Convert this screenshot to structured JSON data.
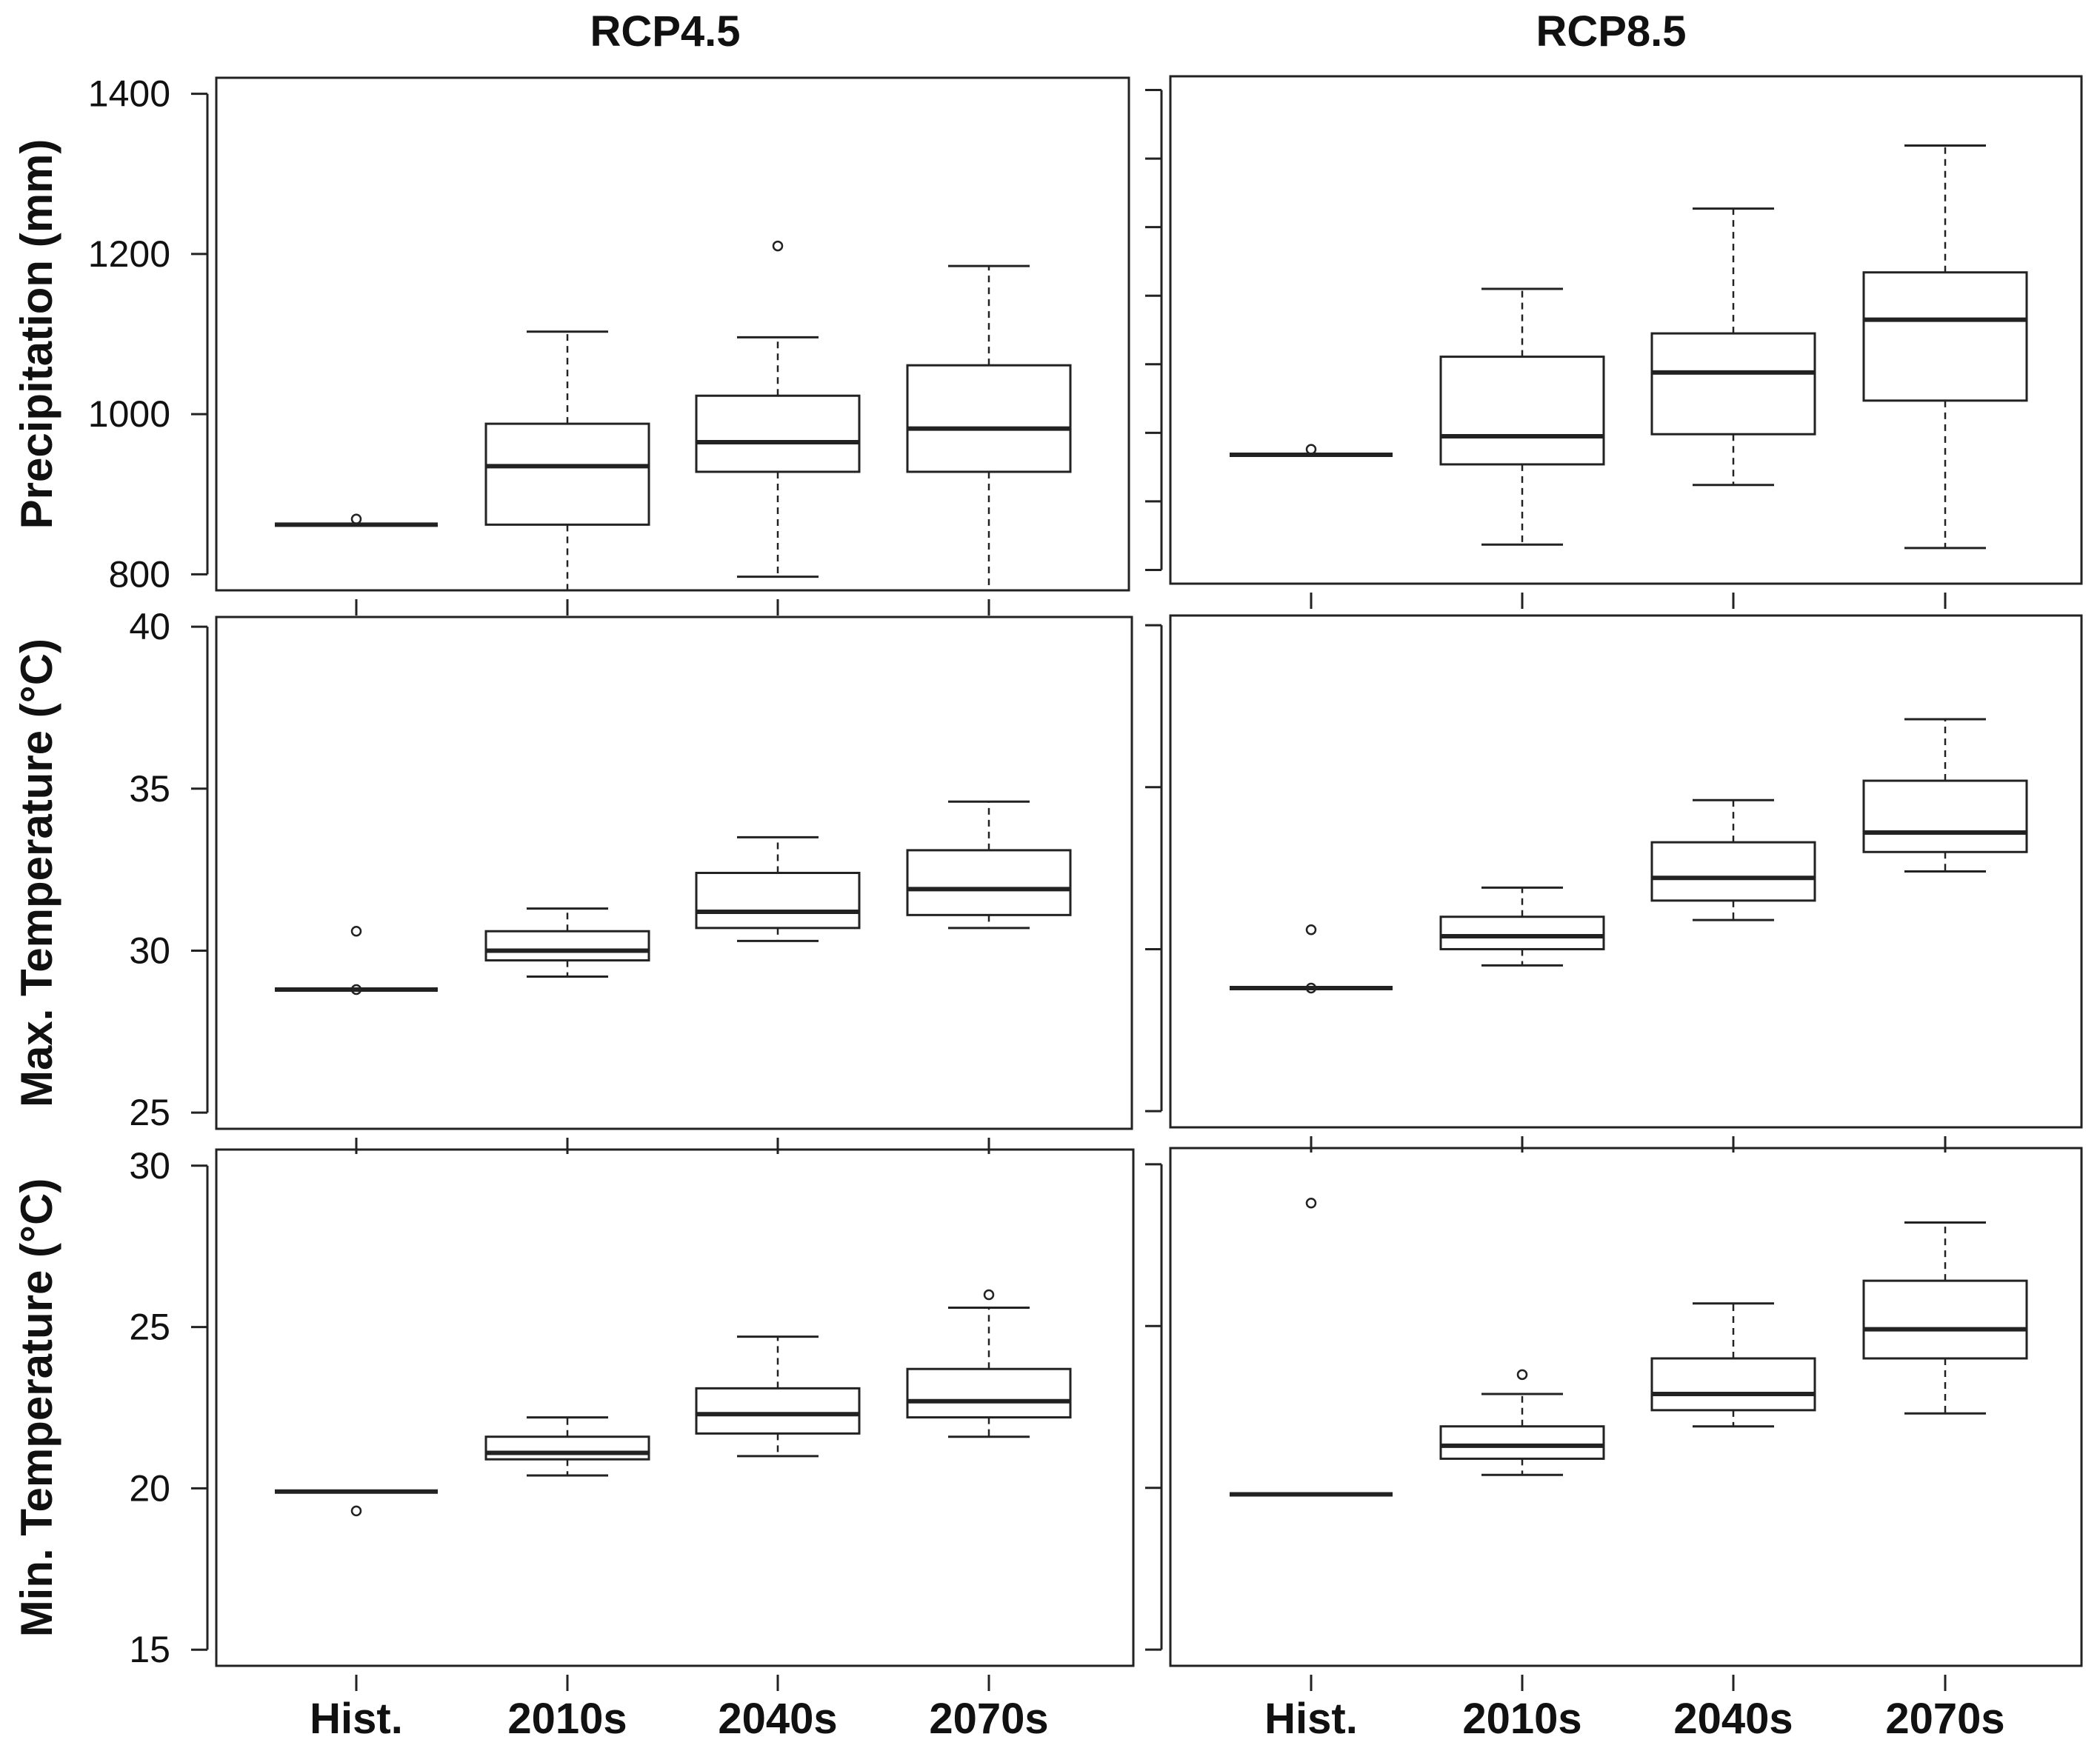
{
  "chart_data": {
    "type": "box",
    "layout": "3 rows x 2 columns",
    "columns": [
      "RCP4.5",
      "RCP8.5"
    ],
    "rows": [
      "Precipitation (mm)",
      "Max. Temperature (°C)",
      "Min. Temperature (°C)"
    ],
    "categories": [
      "Hist.",
      "2010s",
      "2040s",
      "2070s"
    ],
    "panels": [
      {
        "column": "RCP4.5",
        "ylabel": "Precipitation (mm)",
        "ylim": [
          780,
          1420
        ],
        "yticks": [
          800,
          1000,
          1200,
          1400
        ],
        "yticks_labeled": true,
        "boxes": [
          {
            "category": "Hist.",
            "min": 862,
            "q1": 862,
            "median": 862,
            "q3": 862,
            "max": 862,
            "outliers": [
              869
            ]
          },
          {
            "category": "2010s",
            "min": 780,
            "q1": 862,
            "median": 935,
            "q3": 988,
            "max": 1103,
            "outliers": []
          },
          {
            "category": "2040s",
            "min": 797,
            "q1": 928,
            "median": 965,
            "q3": 1023,
            "max": 1096,
            "outliers": [
              1210
            ]
          },
          {
            "category": "2070s",
            "min": 780,
            "q1": 928,
            "median": 982,
            "q3": 1061,
            "max": 1185,
            "outliers": []
          }
        ]
      },
      {
        "column": "RCP8.5",
        "ylabel": "",
        "ylim": [
          680,
          1420
        ],
        "yticks": [
          700,
          800,
          900,
          1000,
          1100,
          1200,
          1300,
          1400
        ],
        "yticks_labeled": false,
        "boxes": [
          {
            "category": "Hist.",
            "min": 868,
            "q1": 868,
            "median": 868,
            "q3": 868,
            "max": 868,
            "outliers": [
              876
            ]
          },
          {
            "category": "2010s",
            "min": 737,
            "q1": 854,
            "median": 895,
            "q3": 1011,
            "max": 1110,
            "outliers": []
          },
          {
            "category": "2040s",
            "min": 824,
            "q1": 898,
            "median": 988,
            "q3": 1045,
            "max": 1227,
            "outliers": []
          },
          {
            "category": "2070s",
            "min": 732,
            "q1": 947,
            "median": 1065,
            "q3": 1134,
            "max": 1319,
            "outliers": []
          }
        ]
      },
      {
        "column": "RCP4.5",
        "ylabel": "Max. Temperature (°C)",
        "ylim": [
          24.5,
          40.3
        ],
        "yticks": [
          25,
          30,
          35,
          40
        ],
        "yticks_labeled": true,
        "boxes": [
          {
            "category": "Hist.",
            "min": 28.8,
            "q1": 28.8,
            "median": 28.8,
            "q3": 28.8,
            "max": 28.8,
            "outliers": [
              30.6,
              28.8
            ]
          },
          {
            "category": "2010s",
            "min": 29.2,
            "q1": 29.7,
            "median": 30.0,
            "q3": 30.6,
            "max": 31.3,
            "outliers": []
          },
          {
            "category": "2040s",
            "min": 30.3,
            "q1": 30.7,
            "median": 31.2,
            "q3": 32.4,
            "max": 33.5,
            "outliers": []
          },
          {
            "category": "2070s",
            "min": 30.7,
            "q1": 31.1,
            "median": 31.9,
            "q3": 33.1,
            "max": 34.6,
            "outliers": []
          }
        ]
      },
      {
        "column": "RCP8.5",
        "ylabel": "",
        "ylim": [
          24.5,
          40.3
        ],
        "yticks": [
          25,
          30,
          35,
          40
        ],
        "yticks_labeled": false,
        "boxes": [
          {
            "category": "Hist.",
            "min": 28.8,
            "q1": 28.8,
            "median": 28.8,
            "q3": 28.8,
            "max": 28.8,
            "outliers": [
              30.6,
              28.8
            ]
          },
          {
            "category": "2010s",
            "min": 29.5,
            "q1": 30.0,
            "median": 30.4,
            "q3": 31.0,
            "max": 31.9,
            "outliers": []
          },
          {
            "category": "2040s",
            "min": 30.9,
            "q1": 31.5,
            "median": 32.2,
            "q3": 33.3,
            "max": 34.6,
            "outliers": []
          },
          {
            "category": "2070s",
            "min": 32.4,
            "q1": 33.0,
            "median": 33.6,
            "q3": 35.2,
            "max": 37.1,
            "outliers": []
          }
        ]
      },
      {
        "column": "RCP4.5",
        "ylabel": "Min. Temperature (°C)",
        "ylim": [
          14.5,
          30.5
        ],
        "yticks": [
          15,
          20,
          25,
          30
        ],
        "yticks_labeled": true,
        "boxes": [
          {
            "category": "Hist.",
            "min": 19.9,
            "q1": 19.9,
            "median": 19.9,
            "q3": 19.9,
            "max": 19.9,
            "outliers": [
              19.3
            ]
          },
          {
            "category": "2010s",
            "min": 20.4,
            "q1": 20.9,
            "median": 21.1,
            "q3": 21.6,
            "max": 22.2,
            "outliers": []
          },
          {
            "category": "2040s",
            "min": 21.0,
            "q1": 21.7,
            "median": 22.3,
            "q3": 23.1,
            "max": 24.7,
            "outliers": []
          },
          {
            "category": "2070s",
            "min": 21.6,
            "q1": 22.2,
            "median": 22.7,
            "q3": 23.7,
            "max": 25.6,
            "outliers": [
              26.0
            ]
          }
        ]
      },
      {
        "column": "RCP8.5",
        "ylabel": "",
        "ylim": [
          14.5,
          30.5
        ],
        "yticks": [
          15,
          20,
          25,
          30
        ],
        "yticks_labeled": false,
        "boxes": [
          {
            "category": "Hist.",
            "min": 19.8,
            "q1": 19.8,
            "median": 19.8,
            "q3": 19.8,
            "max": 19.8,
            "outliers": [
              28.8
            ]
          },
          {
            "category": "2010s",
            "min": 20.4,
            "q1": 20.9,
            "median": 21.3,
            "q3": 21.9,
            "max": 22.9,
            "outliers": [
              23.5
            ]
          },
          {
            "category": "2040s",
            "min": 21.9,
            "q1": 22.4,
            "median": 22.9,
            "q3": 24.0,
            "max": 25.7,
            "outliers": []
          },
          {
            "category": "2070s",
            "min": 22.3,
            "q1": 24.0,
            "median": 24.9,
            "q3": 26.4,
            "max": 28.2,
            "outliers": []
          }
        ]
      }
    ],
    "colors": {
      "line": "#222222",
      "background": "#ffffff"
    }
  }
}
